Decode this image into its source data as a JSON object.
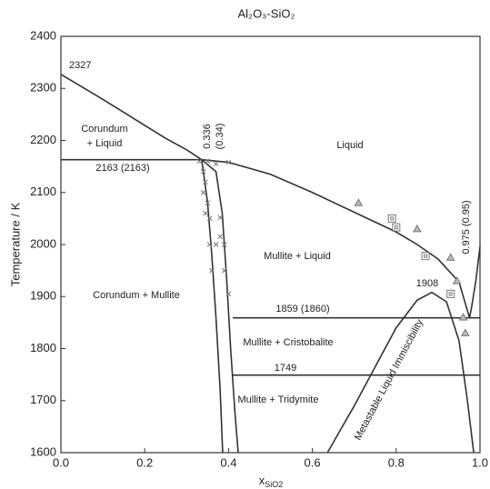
{
  "chart_data": {
    "type": "phase-diagram",
    "title": "Al₂O₃-SiO₂",
    "x_label": {
      "main": "x",
      "sub": "SiO2"
    },
    "y_label": "Temperature / K",
    "xlim": [
      0,
      1
    ],
    "xticks": [
      {
        "value": 0,
        "label": "0.0"
      },
      0.2,
      0.4,
      0.6,
      0.8,
      {
        "value": 1,
        "label": "1.0"
      }
    ],
    "ylim": [
      1600,
      2400
    ],
    "yticks": [
      1600,
      1700,
      1800,
      1900,
      2000,
      2100,
      2200,
      2300,
      2400
    ],
    "line_color": "#333333",
    "series": [
      {
        "x": [
          0,
          0.05,
          0.1,
          0.15,
          0.2,
          0.25,
          0.3,
          0.336
        ],
        "values": [
          2327,
          2303,
          2279,
          2254,
          2229,
          2204,
          2182,
          2163
        ]
      },
      {
        "x": [
          0.336,
          0.4,
          0.5,
          0.6,
          0.7,
          0.8,
          0.85,
          0.9,
          0.95,
          0.975
        ],
        "values": [
          2163,
          2158,
          2135,
          2100,
          2062,
          2024,
          2000,
          1972,
          1928,
          1859
        ]
      },
      {
        "x": [
          0.975,
          0.98,
          0.99,
          1.0
        ],
        "values": [
          1859,
          1880,
          1930,
          1996
        ]
      },
      {
        "x": [
          0.336,
          0.34,
          0.35,
          0.36,
          0.37,
          0.38,
          0.386
        ],
        "values": [
          2163,
          2140,
          2080,
          1980,
          1860,
          1720,
          1600
        ]
      },
      {
        "x": [
          0.336,
          0.37,
          0.385,
          0.395,
          0.405,
          0.415,
          0.423
        ],
        "values": [
          2163,
          2140,
          2060,
          1940,
          1800,
          1680,
          1600
        ]
      },
      {
        "x": [
          0.636,
          0.7,
          0.75,
          0.8,
          0.85,
          0.885,
          0.92,
          0.95,
          0.97,
          0.985
        ],
        "values": [
          1600,
          1690,
          1765,
          1840,
          1893,
          1908,
          1890,
          1815,
          1700,
          1600
        ]
      },
      {
        "x": [
          0,
          0.336
        ],
        "values": [
          2163,
          2163
        ]
      },
      {
        "x": [
          0.41,
          1.0
        ],
        "values": [
          1859,
          1859
        ]
      },
      {
        "x": [
          0.41,
          1.0
        ],
        "values": [
          1749,
          1749
        ]
      }
    ],
    "marker_color": "#777777",
    "points": [
      {
        "marker": "cross",
        "x": [
          0.33,
          0.35,
          0.37,
          0.4,
          0.34,
          0.345,
          0.34,
          0.35,
          0.345,
          0.355,
          0.37,
          0.36,
          0.38,
          0.39,
          0.39,
          0.4,
          0.38,
          0.355
        ],
        "values": [
          2160,
          2160,
          2155,
          2158,
          2140,
          2120,
          2100,
          2080,
          2060,
          2050,
          2000,
          1950,
          2052,
          2000,
          1950,
          1905,
          2015,
          2000
        ]
      },
      {
        "marker": "triangle",
        "x": [
          0.71,
          0.85,
          0.93,
          0.945,
          0.96,
          0.965
        ],
        "values": [
          2080,
          2030,
          1975,
          1930,
          1860,
          1830
        ]
      },
      {
        "marker": "square",
        "x": [
          0.79,
          0.8,
          0.87,
          0.93
        ],
        "values": [
          2050,
          2033,
          1978,
          1905
        ]
      }
    ],
    "annotations": [
      "2327",
      "Corundum",
      "+ Liquid",
      "2163 (2163)",
      "0.336",
      "(0.34)",
      "Liquid",
      "Corundum + Mullite",
      "Mullite + Liquid",
      "0.975 (0.95)",
      "1908",
      "1859 (1860)",
      "Mullite + Cristobalite",
      "1749",
      "Mullite + Tridymite",
      "Metastable Liquid Immiscibility"
    ]
  }
}
